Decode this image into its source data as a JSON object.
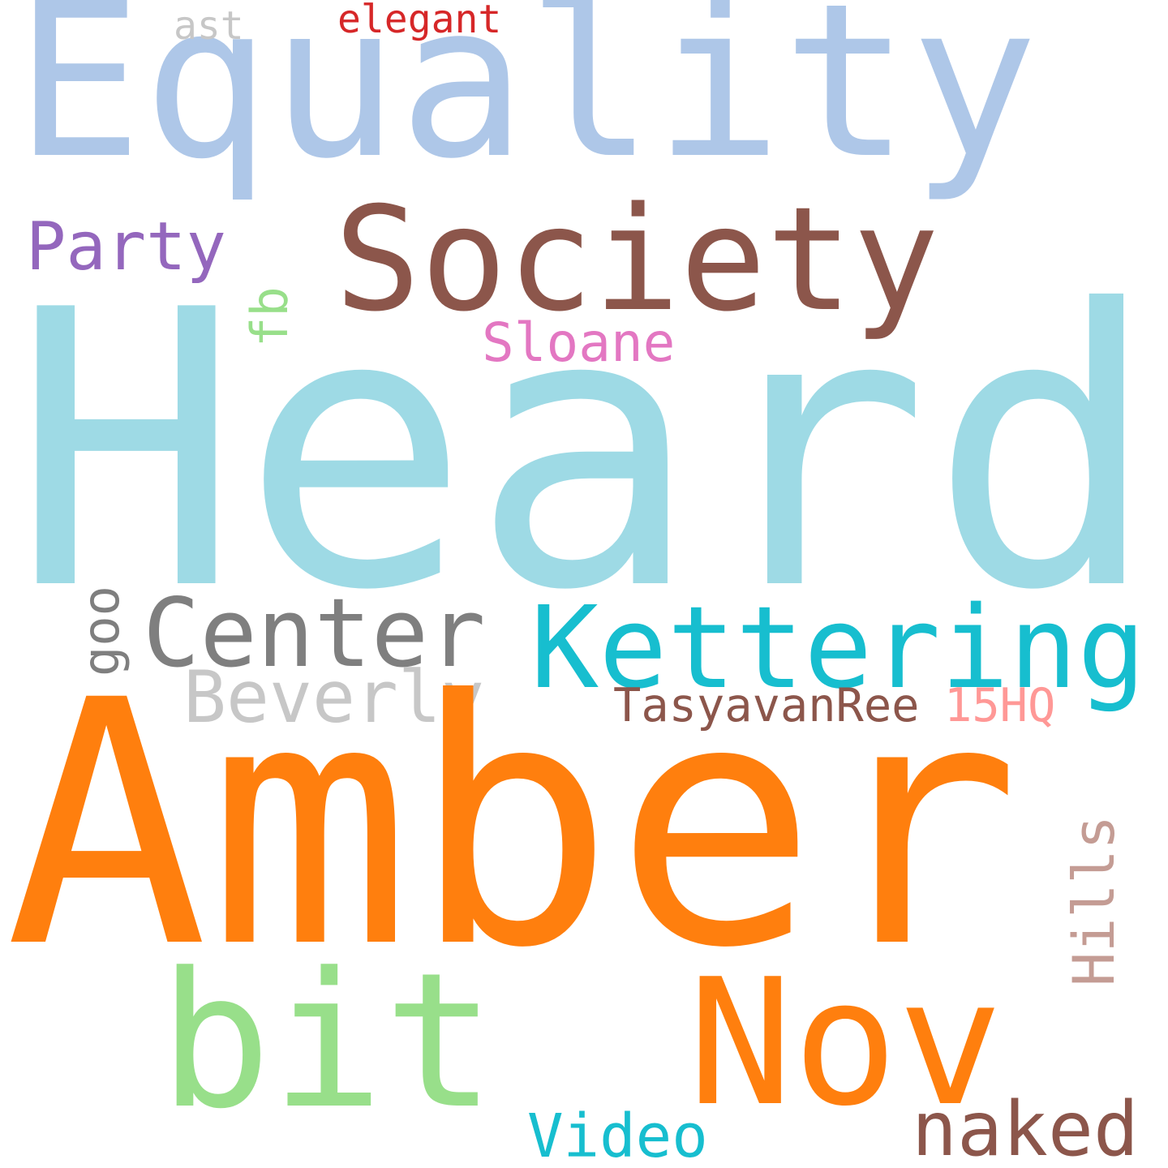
{
  "words": [
    {
      "key": "equality",
      "text": "Equality",
      "color": "#aec7e8"
    },
    {
      "key": "society",
      "text": "Society",
      "color": "#8c564b"
    },
    {
      "key": "party",
      "text": "Party",
      "color": "#9467bd"
    },
    {
      "key": "ast",
      "text": "ast",
      "color": "#c7c7c7"
    },
    {
      "key": "elegant",
      "text": "elegant",
      "color": "#d62728"
    },
    {
      "key": "fb",
      "text": "fb",
      "color": "#98df8a"
    },
    {
      "key": "sloane",
      "text": "Sloane",
      "color": "#e377c2"
    },
    {
      "key": "heard",
      "text": "Heard",
      "color": "#9edae5"
    },
    {
      "key": "center",
      "text": "Center",
      "color": "#7f7f7f"
    },
    {
      "key": "goo",
      "text": "goo",
      "color": "#7f7f7f"
    },
    {
      "key": "kettering",
      "text": "Kettering",
      "color": "#17becf"
    },
    {
      "key": "beverly",
      "text": "Beverly",
      "color": "#c7c7c7"
    },
    {
      "key": "tasyavanree",
      "text": "TasyavanRee",
      "color": "#8c564b"
    },
    {
      "key": "hq",
      "text": "15HQ",
      "color": "#ff9896"
    },
    {
      "key": "amber",
      "text": "Amber",
      "color": "#ff7f0e"
    },
    {
      "key": "hills",
      "text": "Hills",
      "color": "#c49c94"
    },
    {
      "key": "bit",
      "text": "bit",
      "color": "#98df8a"
    },
    {
      "key": "nov",
      "text": "Nov",
      "color": "#ff7f0e"
    },
    {
      "key": "video",
      "text": "Video",
      "color": "#17becf"
    },
    {
      "key": "naked",
      "text": "naked",
      "color": "#8c564b"
    }
  ]
}
